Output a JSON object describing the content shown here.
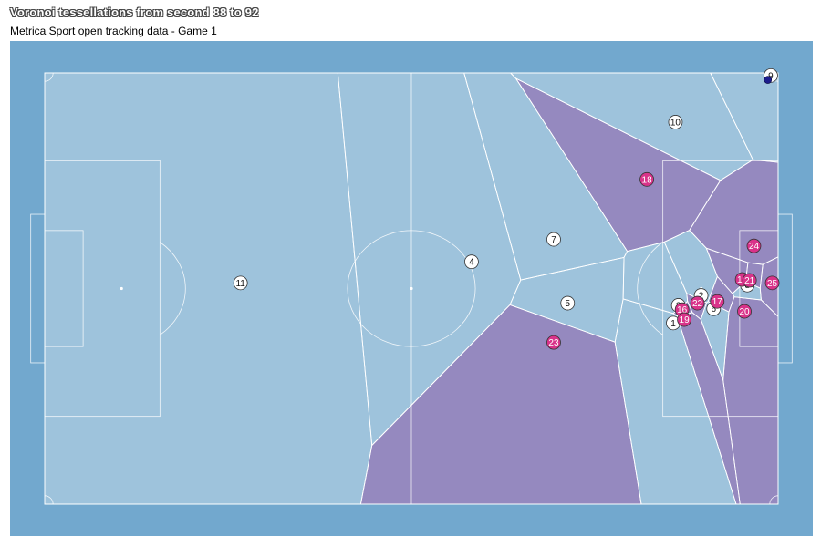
{
  "title": "Voronoi tessellations from second 88 to 92",
  "subtitle": "Metrica Sport open tracking data - Game 1",
  "colors": {
    "panel": "#72a8ce",
    "pitch_home": "#9ec3dc",
    "pitch_away": "#9589bf",
    "lines": "#ffffff",
    "home_player": "#ffffff",
    "away_player": "#d9338a",
    "ball": "#1c1c8c"
  },
  "chart_data": {
    "type": "scatter",
    "title": "Voronoi tessellations from second 88 to 92",
    "subtitle": "Metrica Sport open tracking data - Game 1",
    "xlim": [
      0,
      1
    ],
    "ylim": [
      0,
      1
    ],
    "y_direction": "down",
    "grid": false,
    "series": [
      {
        "team": "home",
        "points": [
          {
            "label": "11",
            "x": 0.267,
            "y": 0.487
          },
          {
            "label": "4",
            "x": 0.582,
            "y": 0.438
          },
          {
            "label": "7",
            "x": 0.694,
            "y": 0.386
          },
          {
            "label": "5",
            "x": 0.713,
            "y": 0.534
          },
          {
            "label": "10",
            "x": 0.86,
            "y": 0.114
          },
          {
            "label": "9",
            "x": 0.99,
            "y": 0.006
          },
          {
            "label": "1",
            "x": 0.857,
            "y": 0.58
          },
          {
            "label": "3",
            "x": 0.864,
            "y": 0.539
          },
          {
            "label": "2",
            "x": 0.895,
            "y": 0.516
          },
          {
            "label": "6",
            "x": 0.912,
            "y": 0.547
          },
          {
            "label": "8",
            "x": 0.958,
            "y": 0.492
          }
        ]
      },
      {
        "team": "away",
        "points": [
          {
            "label": "18",
            "x": 0.821,
            "y": 0.247
          },
          {
            "label": "23",
            "x": 0.694,
            "y": 0.625
          },
          {
            "label": "24",
            "x": 0.967,
            "y": 0.401
          },
          {
            "label": "15",
            "x": 0.951,
            "y": 0.479
          },
          {
            "label": "21",
            "x": 0.961,
            "y": 0.481
          },
          {
            "label": "25",
            "x": 0.992,
            "y": 0.487
          },
          {
            "label": "16",
            "x": 0.869,
            "y": 0.549
          },
          {
            "label": "22",
            "x": 0.89,
            "y": 0.534
          },
          {
            "label": "17",
            "x": 0.917,
            "y": 0.53
          },
          {
            "label": "19",
            "x": 0.872,
            "y": 0.572
          },
          {
            "label": "20",
            "x": 0.954,
            "y": 0.553
          }
        ]
      }
    ],
    "ball": {
      "x": 0.986,
      "y": 0.016
    }
  }
}
